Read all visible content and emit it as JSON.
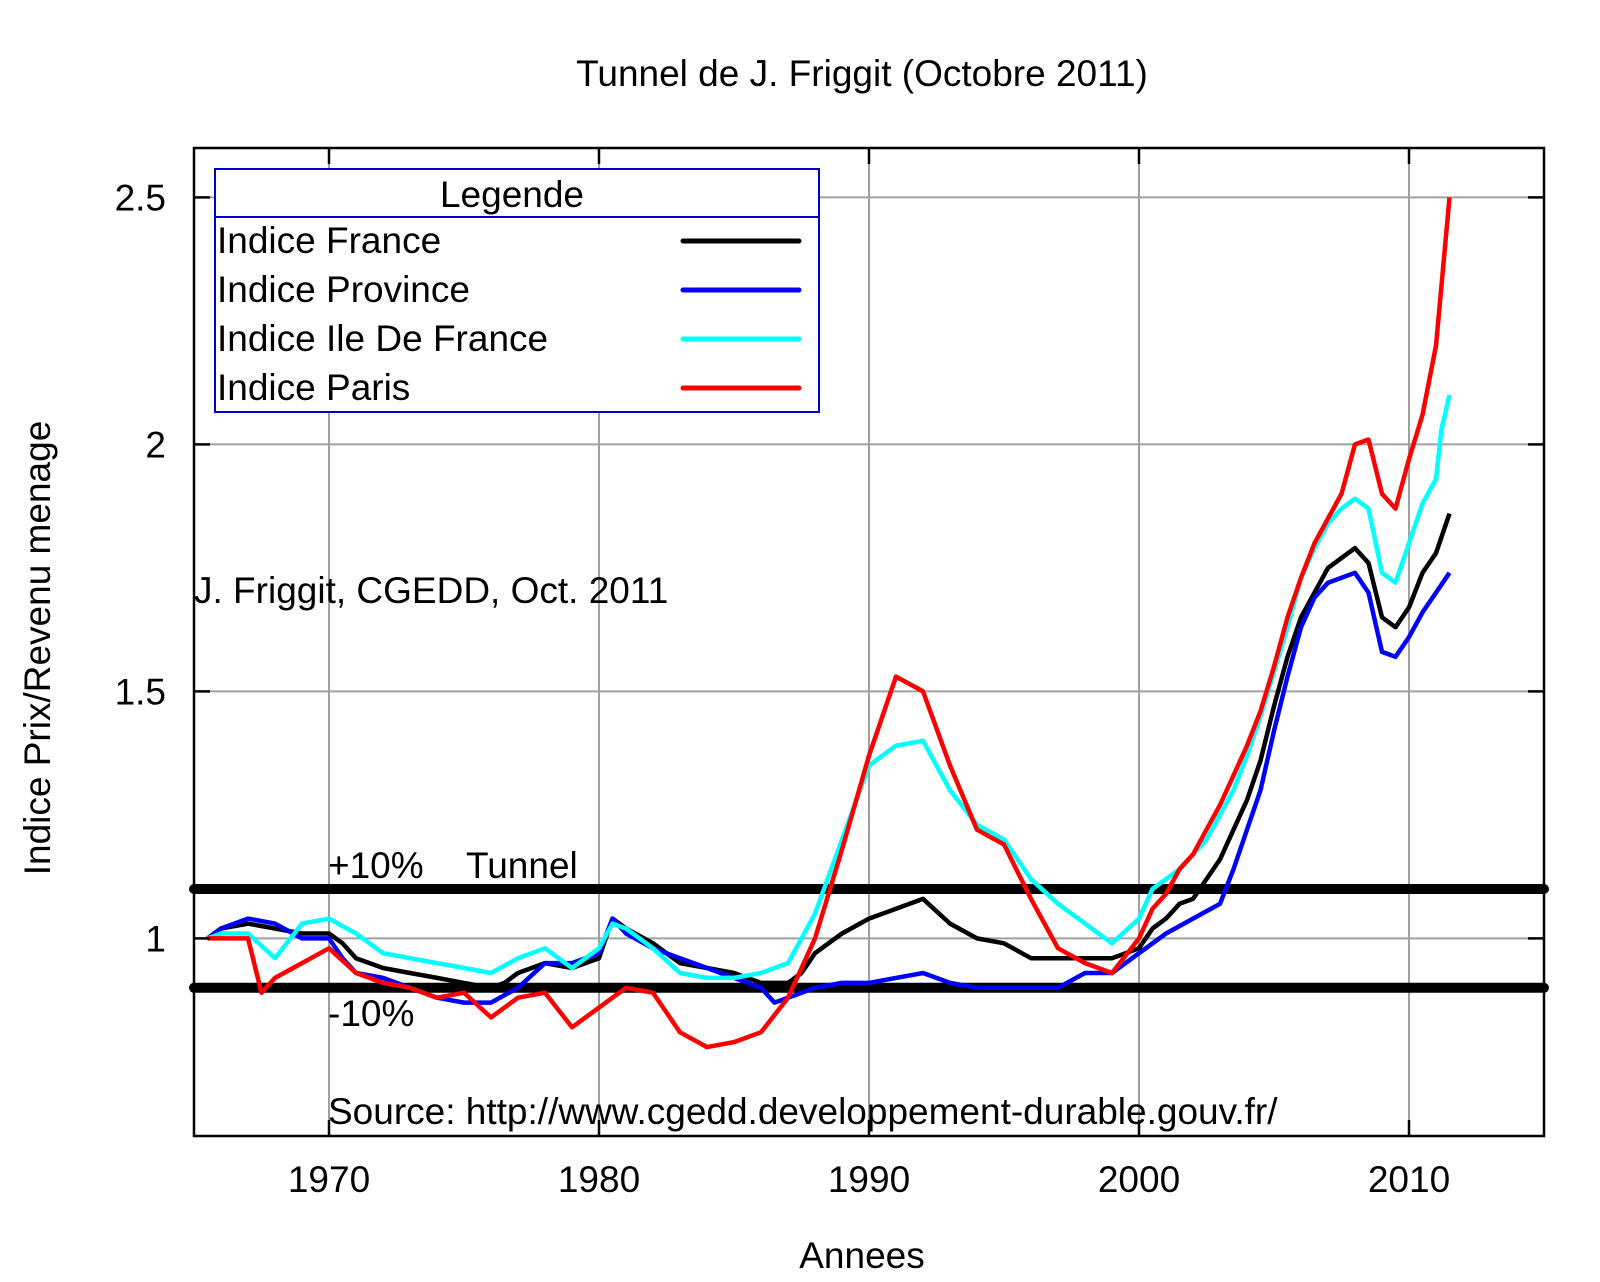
{
  "chart_data": {
    "type": "line",
    "title": "Tunnel de J. Friggit (Octobre 2011)",
    "xlabel": "Annees",
    "ylabel": "Indice Prix/Revenu menage",
    "xlim": [
      1965,
      2015
    ],
    "ylim": [
      0.6,
      2.6
    ],
    "x_ticks": [
      1970,
      1980,
      1990,
      2000,
      2010
    ],
    "y_ticks": [
      1,
      1.5,
      2,
      2.5
    ],
    "x_tick_labels": [
      "1970",
      "1980",
      "1990",
      "2000",
      "2010"
    ],
    "y_tick_labels": [
      "1",
      "1.5",
      "2",
      "2.5"
    ],
    "grid": true,
    "legend": {
      "title": "Legende",
      "position": "top-left"
    },
    "series": [
      {
        "name": "Indice France",
        "color": "#000000",
        "points": [
          [
            1965.5,
            1.0
          ],
          [
            1966,
            1.02
          ],
          [
            1967,
            1.03
          ],
          [
            1968,
            1.02
          ],
          [
            1969,
            1.01
          ],
          [
            1970,
            1.01
          ],
          [
            1970.5,
            0.99
          ],
          [
            1971,
            0.96
          ],
          [
            1972,
            0.94
          ],
          [
            1973,
            0.93
          ],
          [
            1974,
            0.92
          ],
          [
            1975,
            0.91
          ],
          [
            1976,
            0.9
          ],
          [
            1976.5,
            0.91
          ],
          [
            1977,
            0.93
          ],
          [
            1978,
            0.95
          ],
          [
            1979,
            0.94
          ],
          [
            1980,
            0.96
          ],
          [
            1980.5,
            1.04
          ],
          [
            1981,
            1.02
          ],
          [
            1982,
            0.99
          ],
          [
            1983,
            0.95
          ],
          [
            1984,
            0.94
          ],
          [
            1985,
            0.93
          ],
          [
            1986,
            0.91
          ],
          [
            1987,
            0.91
          ],
          [
            1987.5,
            0.93
          ],
          [
            1988,
            0.97
          ],
          [
            1989,
            1.01
          ],
          [
            1990,
            1.04
          ],
          [
            1991,
            1.06
          ],
          [
            1992,
            1.08
          ],
          [
            1993,
            1.03
          ],
          [
            1994,
            1.0
          ],
          [
            1995,
            0.99
          ],
          [
            1996,
            0.96
          ],
          [
            1997,
            0.96
          ],
          [
            1998,
            0.96
          ],
          [
            1999,
            0.96
          ],
          [
            2000,
            0.98
          ],
          [
            2000.5,
            1.02
          ],
          [
            2001,
            1.04
          ],
          [
            2001.5,
            1.07
          ],
          [
            2002,
            1.08
          ],
          [
            2002.5,
            1.12
          ],
          [
            2003,
            1.16
          ],
          [
            2003.5,
            1.22
          ],
          [
            2004,
            1.28
          ],
          [
            2004.5,
            1.36
          ],
          [
            2005,
            1.47
          ],
          [
            2005.5,
            1.57
          ],
          [
            2006,
            1.65
          ],
          [
            2006.5,
            1.7
          ],
          [
            2007,
            1.75
          ],
          [
            2007.5,
            1.77
          ],
          [
            2008,
            1.79
          ],
          [
            2008.5,
            1.76
          ],
          [
            2009,
            1.65
          ],
          [
            2009.5,
            1.63
          ],
          [
            2010,
            1.67
          ],
          [
            2010.5,
            1.74
          ],
          [
            2011,
            1.78
          ],
          [
            2011.5,
            1.86
          ]
        ]
      },
      {
        "name": "Indice Province",
        "color": "#0000ff",
        "points": [
          [
            1965.5,
            1.0
          ],
          [
            1966,
            1.02
          ],
          [
            1967,
            1.04
          ],
          [
            1968,
            1.03
          ],
          [
            1969,
            1.0
          ],
          [
            1970,
            1.0
          ],
          [
            1970.5,
            0.96
          ],
          [
            1971,
            0.93
          ],
          [
            1972,
            0.92
          ],
          [
            1973,
            0.9
          ],
          [
            1974,
            0.88
          ],
          [
            1975,
            0.87
          ],
          [
            1976,
            0.87
          ],
          [
            1977,
            0.9
          ],
          [
            1978,
            0.95
          ],
          [
            1979,
            0.95
          ],
          [
            1980,
            0.97
          ],
          [
            1980.5,
            1.04
          ],
          [
            1981,
            1.01
          ],
          [
            1982,
            0.98
          ],
          [
            1983,
            0.96
          ],
          [
            1984,
            0.94
          ],
          [
            1985,
            0.92
          ],
          [
            1986,
            0.9
          ],
          [
            1986.5,
            0.87
          ],
          [
            1987,
            0.88
          ],
          [
            1988,
            0.9
          ],
          [
            1989,
            0.91
          ],
          [
            1990,
            0.91
          ],
          [
            1991,
            0.92
          ],
          [
            1992,
            0.93
          ],
          [
            1993,
            0.91
          ],
          [
            1994,
            0.9
          ],
          [
            1995,
            0.9
          ],
          [
            1996,
            0.9
          ],
          [
            1997,
            0.9
          ],
          [
            1998,
            0.93
          ],
          [
            1999,
            0.93
          ],
          [
            2000,
            0.97
          ],
          [
            2001,
            1.01
          ],
          [
            2002,
            1.04
          ],
          [
            2003,
            1.07
          ],
          [
            2003.5,
            1.14
          ],
          [
            2004,
            1.22
          ],
          [
            2004.5,
            1.3
          ],
          [
            2005,
            1.42
          ],
          [
            2005.5,
            1.53
          ],
          [
            2006,
            1.63
          ],
          [
            2006.5,
            1.69
          ],
          [
            2007,
            1.72
          ],
          [
            2007.5,
            1.73
          ],
          [
            2008,
            1.74
          ],
          [
            2008.5,
            1.7
          ],
          [
            2009,
            1.58
          ],
          [
            2009.5,
            1.57
          ],
          [
            2010,
            1.61
          ],
          [
            2010.5,
            1.66
          ],
          [
            2011,
            1.7
          ],
          [
            2011.5,
            1.74
          ]
        ]
      },
      {
        "name": "Indice Ile De France",
        "color": "#00ffff",
        "points": [
          [
            1965.5,
            1.0
          ],
          [
            1966,
            1.01
          ],
          [
            1967,
            1.01
          ],
          [
            1968,
            0.96
          ],
          [
            1969,
            1.03
          ],
          [
            1970,
            1.04
          ],
          [
            1971,
            1.01
          ],
          [
            1972,
            0.97
          ],
          [
            1973,
            0.96
          ],
          [
            1974,
            0.95
          ],
          [
            1975,
            0.94
          ],
          [
            1976,
            0.93
          ],
          [
            1977,
            0.96
          ],
          [
            1978,
            0.98
          ],
          [
            1979,
            0.94
          ],
          [
            1980,
            0.98
          ],
          [
            1980.5,
            1.03
          ],
          [
            1981,
            1.02
          ],
          [
            1982,
            0.98
          ],
          [
            1983,
            0.93
          ],
          [
            1984,
            0.92
          ],
          [
            1985,
            0.92
          ],
          [
            1986,
            0.93
          ],
          [
            1987,
            0.95
          ],
          [
            1988,
            1.05
          ],
          [
            1989,
            1.2
          ],
          [
            1990,
            1.35
          ],
          [
            1991,
            1.39
          ],
          [
            1992,
            1.4
          ],
          [
            1993,
            1.3
          ],
          [
            1994,
            1.23
          ],
          [
            1995,
            1.2
          ],
          [
            1996,
            1.12
          ],
          [
            1997,
            1.07
          ],
          [
            1998,
            1.03
          ],
          [
            1999,
            0.99
          ],
          [
            2000,
            1.04
          ],
          [
            2000.5,
            1.1
          ],
          [
            2001,
            1.12
          ],
          [
            2001.5,
            1.14
          ],
          [
            2002,
            1.17
          ],
          [
            2002.5,
            1.2
          ],
          [
            2003,
            1.25
          ],
          [
            2003.5,
            1.3
          ],
          [
            2004,
            1.37
          ],
          [
            2004.5,
            1.45
          ],
          [
            2005,
            1.54
          ],
          [
            2005.5,
            1.63
          ],
          [
            2006,
            1.73
          ],
          [
            2006.5,
            1.79
          ],
          [
            2007,
            1.84
          ],
          [
            2007.5,
            1.87
          ],
          [
            2008,
            1.89
          ],
          [
            2008.5,
            1.87
          ],
          [
            2009,
            1.74
          ],
          [
            2009.5,
            1.72
          ],
          [
            2010,
            1.8
          ],
          [
            2010.5,
            1.88
          ],
          [
            2011,
            1.93
          ],
          [
            2011.2,
            2.03
          ],
          [
            2011.5,
            2.1
          ]
        ]
      },
      {
        "name": "Indice Paris",
        "color": "#ff0000",
        "points": [
          [
            1965.5,
            1.0
          ],
          [
            1966,
            1.0
          ],
          [
            1967,
            1.0
          ],
          [
            1967.5,
            0.89
          ],
          [
            1968,
            0.92
          ],
          [
            1969,
            0.95
          ],
          [
            1970,
            0.98
          ],
          [
            1971,
            0.93
          ],
          [
            1972,
            0.91
          ],
          [
            1973,
            0.9
          ],
          [
            1974,
            0.88
          ],
          [
            1975,
            0.89
          ],
          [
            1976,
            0.84
          ],
          [
            1977,
            0.88
          ],
          [
            1978,
            0.89
          ],
          [
            1979,
            0.82
          ],
          [
            1980,
            0.86
          ],
          [
            1981,
            0.9
          ],
          [
            1982,
            0.89
          ],
          [
            1983,
            0.81
          ],
          [
            1984,
            0.78
          ],
          [
            1985,
            0.79
          ],
          [
            1986,
            0.81
          ],
          [
            1987,
            0.88
          ],
          [
            1988,
            1.0
          ],
          [
            1989,
            1.18
          ],
          [
            1990,
            1.37
          ],
          [
            1991,
            1.53
          ],
          [
            1992,
            1.5
          ],
          [
            1993,
            1.35
          ],
          [
            1994,
            1.22
          ],
          [
            1995,
            1.19
          ],
          [
            1996,
            1.08
          ],
          [
            1997,
            0.98
          ],
          [
            1998,
            0.95
          ],
          [
            1999,
            0.93
          ],
          [
            2000,
            1.0
          ],
          [
            2000.5,
            1.06
          ],
          [
            2001,
            1.09
          ],
          [
            2001.5,
            1.14
          ],
          [
            2002,
            1.17
          ],
          [
            2002.5,
            1.22
          ],
          [
            2003,
            1.27
          ],
          [
            2003.5,
            1.33
          ],
          [
            2004,
            1.39
          ],
          [
            2004.5,
            1.46
          ],
          [
            2005,
            1.55
          ],
          [
            2005.5,
            1.65
          ],
          [
            2006,
            1.73
          ],
          [
            2006.5,
            1.8
          ],
          [
            2007,
            1.85
          ],
          [
            2007.5,
            1.9
          ],
          [
            2008,
            2.0
          ],
          [
            2008.5,
            2.01
          ],
          [
            2009,
            1.9
          ],
          [
            2009.5,
            1.87
          ],
          [
            2010,
            1.97
          ],
          [
            2010.5,
            2.06
          ],
          [
            2011,
            2.2
          ],
          [
            2011.3,
            2.38
          ],
          [
            2011.5,
            2.5
          ]
        ]
      }
    ],
    "reference_lines": [
      1.1,
      0.9
    ],
    "annotations": {
      "author": "J. Friggit, CGEDD, Oct. 2011",
      "upper": "+10%",
      "tunnel": "Tunnel",
      "lower": "-10%",
      "source": "Source: http://www.cgedd.developpement-durable.gouv.fr/"
    }
  }
}
